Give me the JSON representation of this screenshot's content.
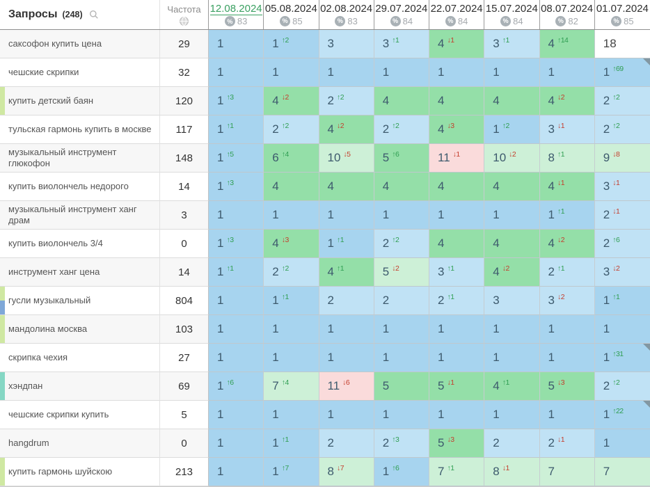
{
  "header": {
    "title": "Запросы",
    "count": "(248)",
    "frequency_label": "Частота",
    "icons": {
      "search": "magnifier-icon",
      "region": "globe-icon",
      "visibility": "percent-icon"
    }
  },
  "colors": {
    "selected_date": "#3aa061",
    "delta_up": "#2f9e52",
    "delta_down": "#c43d2c",
    "cell_blue_top1": "#a7d4ef",
    "cell_blue": "#c0e2f5",
    "cell_green": "#94dfa8",
    "cell_green_pale": "#cdf0d7",
    "cell_pink": "#fadbdb",
    "tag_lime": "#cfe8a2",
    "tag_blue": "#7fa8d8",
    "tag_teal": "#85d7c4"
  },
  "columns": [
    {
      "date": "12.08.2024",
      "percent": 83,
      "selected": true
    },
    {
      "date": "05.08.2024",
      "percent": 85
    },
    {
      "date": "02.08.2024",
      "percent": 83
    },
    {
      "date": "29.07.2024",
      "percent": 84
    },
    {
      "date": "22.07.2024",
      "percent": 84
    },
    {
      "date": "15.07.2024",
      "percent": 84
    },
    {
      "date": "08.07.2024",
      "percent": 82
    },
    {
      "date": "01.07.2024",
      "percent": 85
    }
  ],
  "rows": [
    {
      "query": "саксофон купить цена",
      "frequency": 29,
      "stripes": [],
      "cells": [
        {
          "pos": 1,
          "bg": "b1"
        },
        {
          "pos": 1,
          "delta": 2,
          "dir": "up",
          "bg": "b1"
        },
        {
          "pos": 3,
          "bg": "b2"
        },
        {
          "pos": 3,
          "delta": 1,
          "dir": "up",
          "bg": "b2"
        },
        {
          "pos": 4,
          "delta": 1,
          "dir": "down",
          "bg": "g1"
        },
        {
          "pos": 3,
          "delta": 1,
          "dir": "up",
          "bg": "b2"
        },
        {
          "pos": 4,
          "delta": 14,
          "dir": "up",
          "bg": "g1"
        },
        {
          "pos": 18,
          "bg": "white"
        }
      ]
    },
    {
      "query": "чешские скрипки",
      "frequency": 32,
      "stripes": [],
      "cells": [
        {
          "pos": 1,
          "bg": "b1"
        },
        {
          "pos": 1,
          "bg": "b1"
        },
        {
          "pos": 1,
          "bg": "b1"
        },
        {
          "pos": 1,
          "bg": "b1"
        },
        {
          "pos": 1,
          "bg": "b1"
        },
        {
          "pos": 1,
          "bg": "b1"
        },
        {
          "pos": 1,
          "bg": "b1"
        },
        {
          "pos": 1,
          "delta": 69,
          "dir": "up",
          "bg": "b1",
          "note": true
        }
      ]
    },
    {
      "query": "купить детский баян",
      "frequency": 120,
      "stripes": [
        "lime"
      ],
      "cells": [
        {
          "pos": 1,
          "delta": 3,
          "dir": "up",
          "bg": "b1"
        },
        {
          "pos": 4,
          "delta": 2,
          "dir": "down",
          "bg": "g1"
        },
        {
          "pos": 2,
          "delta": 2,
          "dir": "up",
          "bg": "b2"
        },
        {
          "pos": 4,
          "bg": "g1"
        },
        {
          "pos": 4,
          "bg": "g1"
        },
        {
          "pos": 4,
          "bg": "g1"
        },
        {
          "pos": 4,
          "delta": 2,
          "dir": "down",
          "bg": "g1"
        },
        {
          "pos": 2,
          "delta": 2,
          "dir": "up",
          "bg": "b2"
        }
      ]
    },
    {
      "query": "тульская гармонь купить в москве",
      "frequency": 117,
      "stripes": [],
      "cells": [
        {
          "pos": 1,
          "delta": 1,
          "dir": "up",
          "bg": "b1"
        },
        {
          "pos": 2,
          "delta": 2,
          "dir": "up",
          "bg": "b2"
        },
        {
          "pos": 4,
          "delta": 2,
          "dir": "down",
          "bg": "g1"
        },
        {
          "pos": 2,
          "delta": 2,
          "dir": "up",
          "bg": "b2"
        },
        {
          "pos": 4,
          "delta": 3,
          "dir": "down",
          "bg": "g1"
        },
        {
          "pos": 1,
          "delta": 2,
          "dir": "up",
          "bg": "b1"
        },
        {
          "pos": 3,
          "delta": 1,
          "dir": "down",
          "bg": "b2"
        },
        {
          "pos": 2,
          "delta": 2,
          "dir": "up",
          "bg": "b2"
        }
      ]
    },
    {
      "query": "музыкальный инструмент глюкофон",
      "frequency": 148,
      "stripes": [],
      "cells": [
        {
          "pos": 1,
          "delta": 5,
          "dir": "up",
          "bg": "b1"
        },
        {
          "pos": 6,
          "delta": 4,
          "dir": "up",
          "bg": "g1"
        },
        {
          "pos": 10,
          "delta": 5,
          "dir": "down",
          "bg": "g2"
        },
        {
          "pos": 5,
          "delta": 6,
          "dir": "up",
          "bg": "g1"
        },
        {
          "pos": 11,
          "delta": 1,
          "dir": "down",
          "bg": "pink"
        },
        {
          "pos": 10,
          "delta": 2,
          "dir": "down",
          "bg": "g2"
        },
        {
          "pos": 8,
          "delta": 1,
          "dir": "up",
          "bg": "g2"
        },
        {
          "pos": 9,
          "delta": 8,
          "dir": "down",
          "bg": "g2"
        }
      ]
    },
    {
      "query": "купить виолончель недорого",
      "frequency": 14,
      "stripes": [],
      "cells": [
        {
          "pos": 1,
          "delta": 3,
          "dir": "up",
          "bg": "b1"
        },
        {
          "pos": 4,
          "bg": "g1"
        },
        {
          "pos": 4,
          "bg": "g1"
        },
        {
          "pos": 4,
          "bg": "g1"
        },
        {
          "pos": 4,
          "bg": "g1"
        },
        {
          "pos": 4,
          "bg": "g1"
        },
        {
          "pos": 4,
          "delta": 1,
          "dir": "down",
          "bg": "g1"
        },
        {
          "pos": 3,
          "delta": 1,
          "dir": "down",
          "bg": "b2"
        }
      ]
    },
    {
      "query": "музыкальный инструмент ханг драм",
      "frequency": 3,
      "stripes": [],
      "cells": [
        {
          "pos": 1,
          "bg": "b1"
        },
        {
          "pos": 1,
          "bg": "b1"
        },
        {
          "pos": 1,
          "bg": "b1"
        },
        {
          "pos": 1,
          "bg": "b1"
        },
        {
          "pos": 1,
          "bg": "b1"
        },
        {
          "pos": 1,
          "bg": "b1"
        },
        {
          "pos": 1,
          "delta": 1,
          "dir": "up",
          "bg": "b1"
        },
        {
          "pos": 2,
          "delta": 1,
          "dir": "down",
          "bg": "b2"
        }
      ]
    },
    {
      "query": "купить виолончель 3/4",
      "frequency": 0,
      "stripes": [],
      "cells": [
        {
          "pos": 1,
          "delta": 3,
          "dir": "up",
          "bg": "b1"
        },
        {
          "pos": 4,
          "delta": 3,
          "dir": "down",
          "bg": "g1"
        },
        {
          "pos": 1,
          "delta": 1,
          "dir": "up",
          "bg": "b1"
        },
        {
          "pos": 2,
          "delta": 2,
          "dir": "up",
          "bg": "b2"
        },
        {
          "pos": 4,
          "bg": "g1"
        },
        {
          "pos": 4,
          "bg": "g1"
        },
        {
          "pos": 4,
          "delta": 2,
          "dir": "down",
          "bg": "g1"
        },
        {
          "pos": 2,
          "delta": 6,
          "dir": "up",
          "bg": "b2"
        }
      ]
    },
    {
      "query": "инструмент ханг цена",
      "frequency": 14,
      "stripes": [],
      "cells": [
        {
          "pos": 1,
          "delta": 1,
          "dir": "up",
          "bg": "b1"
        },
        {
          "pos": 2,
          "delta": 2,
          "dir": "up",
          "bg": "b2"
        },
        {
          "pos": 4,
          "delta": 1,
          "dir": "up",
          "bg": "g1"
        },
        {
          "pos": 5,
          "delta": 2,
          "dir": "down",
          "bg": "g2"
        },
        {
          "pos": 3,
          "delta": 1,
          "dir": "up",
          "bg": "b2"
        },
        {
          "pos": 4,
          "delta": 2,
          "dir": "down",
          "bg": "g1"
        },
        {
          "pos": 2,
          "delta": 1,
          "dir": "up",
          "bg": "b2"
        },
        {
          "pos": 3,
          "delta": 2,
          "dir": "down",
          "bg": "b2"
        }
      ]
    },
    {
      "query": "гусли музыкальный",
      "frequency": 804,
      "stripes": [
        "lime",
        "blue"
      ],
      "cells": [
        {
          "pos": 1,
          "bg": "b1"
        },
        {
          "pos": 1,
          "delta": 1,
          "dir": "up",
          "bg": "b1"
        },
        {
          "pos": 2,
          "bg": "b2"
        },
        {
          "pos": 2,
          "bg": "b2"
        },
        {
          "pos": 2,
          "delta": 1,
          "dir": "up",
          "bg": "b2"
        },
        {
          "pos": 3,
          "bg": "b2"
        },
        {
          "pos": 3,
          "delta": 2,
          "dir": "down",
          "bg": "b2"
        },
        {
          "pos": 1,
          "delta": 1,
          "dir": "up",
          "bg": "b1"
        }
      ]
    },
    {
      "query": "мандолина москва",
      "frequency": 103,
      "stripes": [
        "lime"
      ],
      "cells": [
        {
          "pos": 1,
          "bg": "b1"
        },
        {
          "pos": 1,
          "bg": "b1"
        },
        {
          "pos": 1,
          "bg": "b1"
        },
        {
          "pos": 1,
          "bg": "b1"
        },
        {
          "pos": 1,
          "bg": "b1"
        },
        {
          "pos": 1,
          "bg": "b1"
        },
        {
          "pos": 1,
          "bg": "b1"
        },
        {
          "pos": 1,
          "bg": "b1"
        }
      ]
    },
    {
      "query": "скрипка чехия",
      "frequency": 27,
      "stripes": [],
      "cells": [
        {
          "pos": 1,
          "bg": "b1"
        },
        {
          "pos": 1,
          "bg": "b1"
        },
        {
          "pos": 1,
          "bg": "b1"
        },
        {
          "pos": 1,
          "bg": "b1"
        },
        {
          "pos": 1,
          "bg": "b1"
        },
        {
          "pos": 1,
          "bg": "b1"
        },
        {
          "pos": 1,
          "bg": "b1"
        },
        {
          "pos": 1,
          "delta": 31,
          "dir": "up",
          "bg": "b1",
          "note": true
        }
      ]
    },
    {
      "query": "хэндпан",
      "frequency": 69,
      "stripes": [
        "teal"
      ],
      "cells": [
        {
          "pos": 1,
          "delta": 6,
          "dir": "up",
          "bg": "b1"
        },
        {
          "pos": 7,
          "delta": 4,
          "dir": "up",
          "bg": "g2"
        },
        {
          "pos": 11,
          "delta": 6,
          "dir": "down",
          "bg": "pink"
        },
        {
          "pos": 5,
          "bg": "g1"
        },
        {
          "pos": 5,
          "delta": 1,
          "dir": "down",
          "bg": "g1"
        },
        {
          "pos": 4,
          "delta": 1,
          "dir": "up",
          "bg": "g1"
        },
        {
          "pos": 5,
          "delta": 3,
          "dir": "down",
          "bg": "g1"
        },
        {
          "pos": 2,
          "delta": 2,
          "dir": "up",
          "bg": "b2"
        }
      ]
    },
    {
      "query": "чешские скрипки купить",
      "frequency": 5,
      "stripes": [],
      "cells": [
        {
          "pos": 1,
          "bg": "b1"
        },
        {
          "pos": 1,
          "bg": "b1"
        },
        {
          "pos": 1,
          "bg": "b1"
        },
        {
          "pos": 1,
          "bg": "b1"
        },
        {
          "pos": 1,
          "bg": "b1"
        },
        {
          "pos": 1,
          "bg": "b1"
        },
        {
          "pos": 1,
          "bg": "b1"
        },
        {
          "pos": 1,
          "delta": 22,
          "dir": "up",
          "bg": "b1",
          "note": true
        }
      ]
    },
    {
      "query": "hangdrum",
      "frequency": 0,
      "stripes": [],
      "cells": [
        {
          "pos": 1,
          "bg": "b1"
        },
        {
          "pos": 1,
          "delta": 1,
          "dir": "up",
          "bg": "b1"
        },
        {
          "pos": 2,
          "bg": "b2"
        },
        {
          "pos": 2,
          "delta": 3,
          "dir": "up",
          "bg": "b2"
        },
        {
          "pos": 5,
          "delta": 3,
          "dir": "down",
          "bg": "g1"
        },
        {
          "pos": 2,
          "bg": "b2"
        },
        {
          "pos": 2,
          "delta": 1,
          "dir": "down",
          "bg": "b2"
        },
        {
          "pos": 1,
          "bg": "b1"
        }
      ]
    },
    {
      "query": "купить гармонь шуйскою",
      "frequency": 213,
      "stripes": [
        "lime"
      ],
      "cells": [
        {
          "pos": 1,
          "bg": "b1"
        },
        {
          "pos": 1,
          "delta": 7,
          "dir": "up",
          "bg": "b1"
        },
        {
          "pos": 8,
          "delta": 7,
          "dir": "down",
          "bg": "g2"
        },
        {
          "pos": 1,
          "delta": 6,
          "dir": "up",
          "bg": "b1"
        },
        {
          "pos": 7,
          "delta": 1,
          "dir": "up",
          "bg": "g2"
        },
        {
          "pos": 8,
          "delta": 1,
          "dir": "down",
          "bg": "g2"
        },
        {
          "pos": 7,
          "bg": "g2"
        },
        {
          "pos": 7,
          "bg": "g2"
        }
      ]
    }
  ]
}
